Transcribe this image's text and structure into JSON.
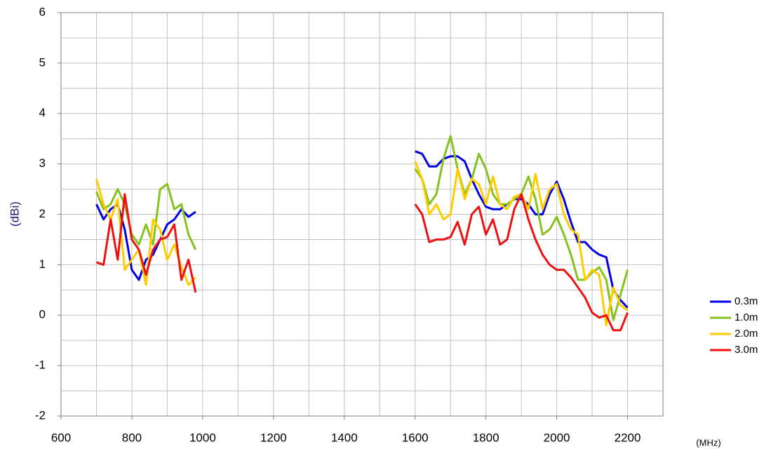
{
  "chart_data": {
    "type": "line",
    "y_label": "(dBi)",
    "x_label": "(MHz)",
    "xlim": [
      600,
      2300
    ],
    "ylim": [
      -2,
      6
    ],
    "xticks": [
      600,
      800,
      1000,
      1200,
      1400,
      1600,
      1800,
      2000,
      2200
    ],
    "yticks": [
      -2,
      -1,
      0,
      1,
      2,
      3,
      4,
      5,
      6
    ],
    "xgrid": [
      700,
      800,
      900,
      1000,
      1100,
      1200,
      1300,
      1400,
      1500,
      1600,
      1700,
      1800,
      1900,
      2000,
      2100,
      2200
    ],
    "ygrid": [
      -1.5,
      -1,
      -0.5,
      0,
      0.5,
      1,
      1.5,
      2,
      2.5,
      3,
      3.5,
      4,
      4.5,
      5,
      5.5
    ],
    "grid": true,
    "legend": "right",
    "x": [
      700,
      720,
      740,
      760,
      780,
      800,
      820,
      840,
      860,
      880,
      900,
      920,
      940,
      960,
      980,
      1000,
      1600,
      1620,
      1640,
      1660,
      1680,
      1700,
      1720,
      1740,
      1760,
      1780,
      1800,
      1820,
      1840,
      1860,
      1880,
      1900,
      1920,
      1940,
      1960,
      1980,
      2000,
      2020,
      2040,
      2060,
      2080,
      2100,
      2120,
      2140,
      2160,
      2180,
      2200
    ],
    "series": [
      {
        "name": "0.3m",
        "color": "#0000e6",
        "values": [
          2.2,
          1.9,
          2.1,
          2.2,
          1.7,
          0.9,
          0.7,
          1.1,
          1.2,
          1.5,
          1.8,
          1.9,
          2.1,
          1.95,
          2.05,
          null,
          3.25,
          3.2,
          2.95,
          2.95,
          3.1,
          3.15,
          3.15,
          3.05,
          2.7,
          2.4,
          2.15,
          2.1,
          2.1,
          2.2,
          2.3,
          2.3,
          2.2,
          2.0,
          2.0,
          2.4,
          2.65,
          2.3,
          1.85,
          1.45,
          1.45,
          1.3,
          1.2,
          1.15,
          0.5,
          0.3,
          0.15
        ]
      },
      {
        "name": "1.0m",
        "color": "#86c21f",
        "values": [
          2.45,
          2.1,
          2.2,
          2.5,
          2.2,
          1.6,
          1.4,
          1.8,
          1.4,
          2.5,
          2.6,
          2.1,
          2.2,
          1.6,
          1.3,
          null,
          2.9,
          2.7,
          2.2,
          2.4,
          3.1,
          3.55,
          2.9,
          2.4,
          2.7,
          3.2,
          2.9,
          2.4,
          2.2,
          2.2,
          2.3,
          2.4,
          2.75,
          2.3,
          1.6,
          1.7,
          1.95,
          1.6,
          1.2,
          0.7,
          0.7,
          0.85,
          0.95,
          0.7,
          -0.1,
          0.4,
          0.9
        ]
      },
      {
        "name": "2.0m",
        "color": "#ffcc00",
        "values": [
          2.7,
          2.2,
          1.9,
          2.3,
          0.9,
          1.1,
          1.3,
          0.6,
          1.9,
          1.7,
          1.1,
          1.4,
          0.95,
          0.6,
          0.75,
          null,
          3.05,
          2.7,
          2.0,
          2.2,
          1.9,
          2.0,
          2.9,
          2.3,
          2.7,
          2.6,
          2.2,
          2.75,
          2.2,
          2.1,
          2.35,
          2.4,
          2.1,
          2.8,
          2.1,
          2.5,
          2.6,
          2.0,
          1.7,
          1.6,
          0.7,
          0.9,
          0.8,
          -0.2,
          0.55,
          0.2,
          0.1
        ]
      },
      {
        "name": "3.0m",
        "color": "#ee1111",
        "values": [
          1.05,
          1.0,
          1.9,
          1.1,
          2.4,
          1.5,
          1.3,
          0.8,
          1.3,
          1.5,
          1.55,
          1.8,
          0.7,
          1.1,
          0.45,
          null,
          2.2,
          2.0,
          1.45,
          1.5,
          1.5,
          1.55,
          1.85,
          1.4,
          2.0,
          2.15,
          1.6,
          1.9,
          1.4,
          1.5,
          2.1,
          2.4,
          1.9,
          1.5,
          1.2,
          1.0,
          0.9,
          0.9,
          0.75,
          0.55,
          0.35,
          0.05,
          -0.05,
          0.0,
          -0.3,
          -0.3,
          0.05
        ]
      }
    ]
  }
}
